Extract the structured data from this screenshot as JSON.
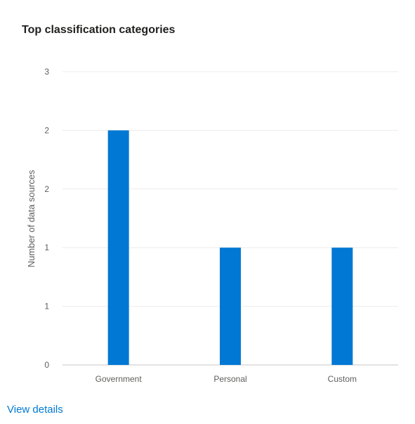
{
  "card": {
    "title": "Top classification categories",
    "view_details_label": "View details"
  },
  "colors": {
    "bar": "#0078d4",
    "gridline": "#edebe9",
    "baseline": "#c8c6c4",
    "link": "#0078d4"
  },
  "chart_data": {
    "type": "bar",
    "title": "Top classification categories",
    "xlabel": "",
    "ylabel": "Number of data sources",
    "categories": [
      "Government",
      "Personal",
      "Custom"
    ],
    "values": [
      2,
      1,
      1
    ],
    "ylim": [
      0,
      2.5
    ],
    "yticks": [
      0,
      0.5,
      1,
      1.5,
      2,
      2.5
    ],
    "ytick_labels": [
      "0",
      "1",
      "1",
      "2",
      "2",
      "3"
    ],
    "grid": true,
    "legend": "none"
  }
}
